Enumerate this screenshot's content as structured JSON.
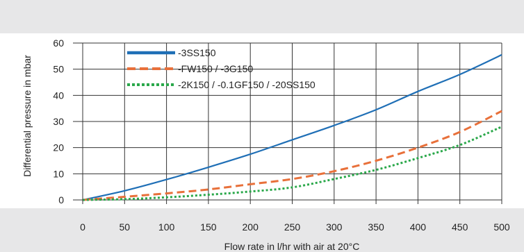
{
  "chart_data": {
    "type": "line",
    "title": "",
    "xlabel": "Flow rate in l/hr with air at 20°C",
    "ylabel": "Differential pressure in mbar",
    "xlim": [
      0,
      500
    ],
    "ylim": [
      0,
      60
    ],
    "xticks": [
      0,
      50,
      100,
      150,
      200,
      250,
      300,
      350,
      400,
      450,
      500
    ],
    "yticks": [
      0,
      10,
      20,
      30,
      40,
      50,
      60
    ],
    "grid": true,
    "legend_position": "top-left",
    "series": [
      {
        "name": "-3SS150",
        "color": "#1f6fb6",
        "style": "solid",
        "x": [
          0,
          50,
          100,
          150,
          200,
          250,
          300,
          350,
          400,
          450,
          500
        ],
        "y": [
          0,
          3.5,
          7.8,
          12.5,
          17.5,
          23,
          28.5,
          34.5,
          41.5,
          48,
          55.5
        ]
      },
      {
        "name": "-FW150 / -3G150",
        "color": "#e8703a",
        "style": "dashed",
        "x": [
          0,
          50,
          100,
          150,
          200,
          250,
          300,
          350,
          400,
          450,
          500
        ],
        "y": [
          0,
          1.2,
          2.5,
          4,
          6,
          8,
          11,
          15,
          20,
          26,
          34
        ]
      },
      {
        "name": "-2K150 / -0.1GF150 / -20SS150",
        "color": "#2aa84a",
        "style": "dotted",
        "x": [
          0,
          50,
          100,
          150,
          200,
          250,
          300,
          350,
          400,
          450,
          500
        ],
        "y": [
          0,
          0.3,
          1,
          2,
          3.2,
          4.8,
          8,
          11.5,
          16,
          21,
          28
        ]
      }
    ]
  }
}
